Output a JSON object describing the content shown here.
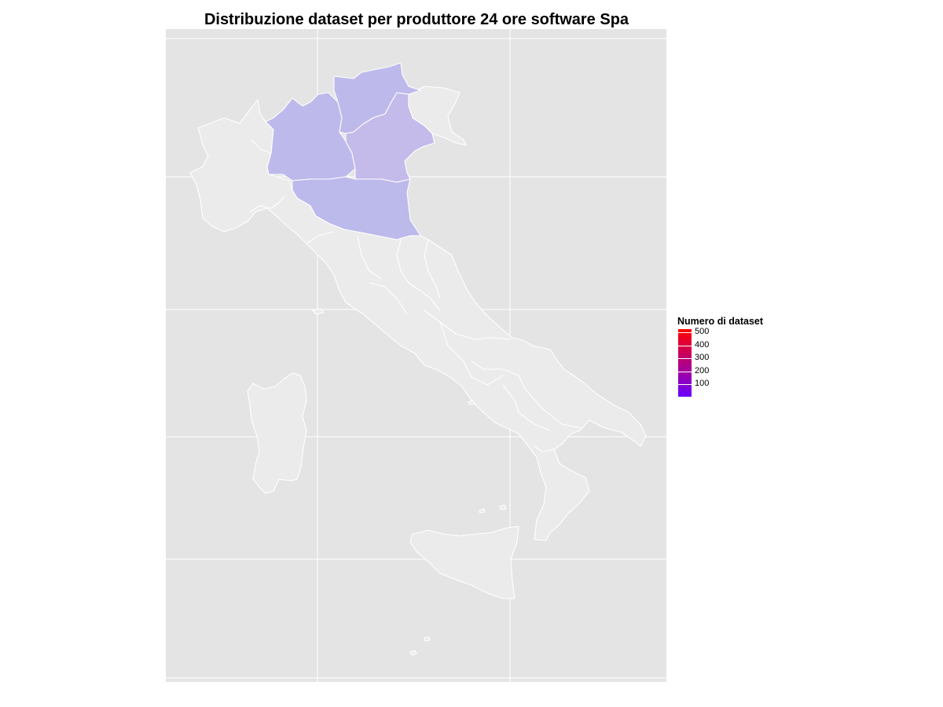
{
  "title": "Distribuzione dataset per produttore 24 ore software Spa",
  "legend": {
    "title": "Numero di dataset",
    "labels": [
      "500",
      "400",
      "300",
      "200",
      "100"
    ],
    "color_high": "#ff0000",
    "color_low": "#6a00ff"
  },
  "colors": {
    "panel_background": "#e4e4e4",
    "grid_line": "#ffffff",
    "region_no_data": "#ebebeb",
    "region_border": "#ffffff",
    "lombardia": "#bdbaeb",
    "trentino_alto_adige": "#bdbaeb",
    "emilia_romagna": "#bcb9eb",
    "veneto": "#c4bbeb"
  },
  "regions_with_data": [
    "Lombardia",
    "Trentino-Alto Adige",
    "Veneto",
    "Emilia-Romagna"
  ]
}
